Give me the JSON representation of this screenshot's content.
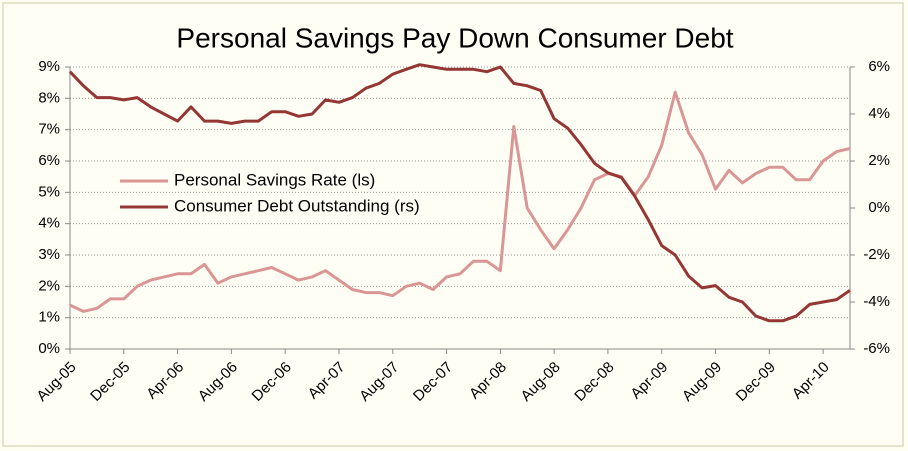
{
  "chart_data": {
    "type": "line",
    "title": "Personal Savings Pay Down Consumer Debt",
    "categories": [
      "Aug-05",
      null,
      null,
      null,
      "Dec-05",
      null,
      null,
      null,
      "Apr-06",
      null,
      null,
      null,
      "Aug-06",
      null,
      null,
      null,
      "Dec-06",
      null,
      null,
      null,
      "Apr-07",
      null,
      null,
      null,
      "Aug-07",
      null,
      null,
      null,
      "Dec-07",
      null,
      null,
      null,
      "Apr-08",
      null,
      null,
      null,
      "Aug-08",
      null,
      null,
      null,
      "Dec-08",
      null,
      null,
      null,
      "Apr-09",
      null,
      null,
      null,
      "Aug-09",
      null,
      null,
      null,
      "Dec-09",
      null,
      null,
      null,
      "Apr-10",
      null,
      null
    ],
    "series": [
      {
        "name": "Personal Savings Rate (ls)",
        "color": "#d99694",
        "axis": "y",
        "values": [
          1.4,
          1.2,
          1.3,
          1.6,
          1.6,
          2.0,
          2.2,
          2.3,
          2.4,
          2.4,
          2.7,
          2.1,
          2.3,
          2.4,
          2.5,
          2.6,
          2.4,
          2.2,
          2.3,
          2.5,
          2.2,
          1.9,
          1.8,
          1.8,
          1.7,
          2.0,
          2.1,
          1.9,
          2.3,
          2.4,
          2.8,
          2.8,
          2.5,
          7.1,
          4.5,
          3.8,
          3.2,
          3.8,
          4.5,
          5.4,
          5.6,
          5.5,
          4.9,
          5.5,
          6.5,
          8.2,
          6.9,
          6.2,
          5.1,
          5.7,
          5.3,
          5.6,
          5.8,
          5.8,
          5.4,
          5.4,
          6.0,
          6.3,
          6.4
        ]
      },
      {
        "name": "Consumer Debt Outstanding (rs)",
        "color": "#943634",
        "axis": "y2",
        "values": [
          5.8,
          5.2,
          4.7,
          4.7,
          4.6,
          4.7,
          4.3,
          4.0,
          3.7,
          4.3,
          3.7,
          3.7,
          3.6,
          3.7,
          3.7,
          4.1,
          4.1,
          3.9,
          4.0,
          4.6,
          4.5,
          4.7,
          5.1,
          5.3,
          5.7,
          5.9,
          6.1,
          6.0,
          5.9,
          5.9,
          5.9,
          5.8,
          6.0,
          5.3,
          5.2,
          5.0,
          3.8,
          3.4,
          2.7,
          1.9,
          1.5,
          1.3,
          0.5,
          -0.5,
          -1.6,
          -2.0,
          -2.9,
          -3.4,
          -3.3,
          -3.8,
          -4.0,
          -4.6,
          -4.8,
          -4.8,
          -4.6,
          -4.1,
          -4.0,
          -3.9,
          -3.5
        ]
      }
    ],
    "ylim": [
      0,
      9
    ],
    "yticks": [
      {
        "value": 0,
        "label": "0%"
      },
      {
        "value": 1,
        "label": "1%"
      },
      {
        "value": 2,
        "label": "2%"
      },
      {
        "value": 3,
        "label": "3%"
      },
      {
        "value": 4,
        "label": "4%"
      },
      {
        "value": 5,
        "label": "5%"
      },
      {
        "value": 6,
        "label": "6%"
      },
      {
        "value": 7,
        "label": "7%"
      },
      {
        "value": 8,
        "label": "8%"
      },
      {
        "value": 9,
        "label": "9%"
      }
    ],
    "y2lim": [
      -6,
      6
    ],
    "y2ticks": [
      {
        "value": -6,
        "label": "-6%"
      },
      {
        "value": -4,
        "label": "-4%"
      },
      {
        "value": -2,
        "label": "-2%"
      },
      {
        "value": 0,
        "label": "0%"
      },
      {
        "value": 2,
        "label": "2%"
      },
      {
        "value": 4,
        "label": "4%"
      },
      {
        "value": 6,
        "label": "6%"
      }
    ],
    "grid": true
  }
}
